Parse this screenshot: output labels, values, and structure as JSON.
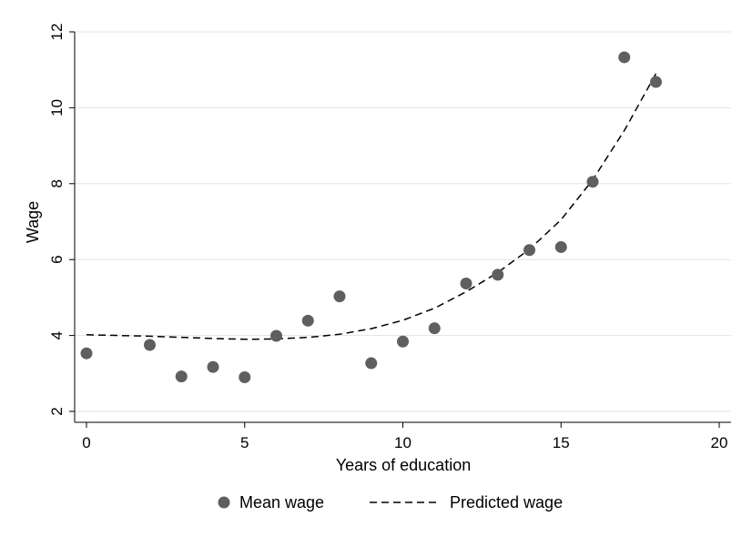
{
  "chart_data": {
    "type": "scatter",
    "xlabel": "Years of education",
    "ylabel": "Wage",
    "xlim": [
      0,
      20
    ],
    "ylim": [
      2,
      12
    ],
    "xticks": [
      "0",
      "5",
      "10",
      "15",
      "20"
    ],
    "yticks": [
      "2",
      "4",
      "6",
      "8",
      "10",
      "12"
    ],
    "grid": "horizontal",
    "legend_position": "bottom",
    "series": [
      {
        "name": "Mean wage",
        "type": "scatter",
        "color": "#5f5f5f",
        "points": [
          {
            "x": 0,
            "y": 3.53
          },
          {
            "x": 2,
            "y": 3.75
          },
          {
            "x": 3,
            "y": 2.92
          },
          {
            "x": 4,
            "y": 3.17
          },
          {
            "x": 5,
            "y": 2.9
          },
          {
            "x": 6,
            "y": 3.99
          },
          {
            "x": 7,
            "y": 4.39
          },
          {
            "x": 8,
            "y": 5.03
          },
          {
            "x": 9,
            "y": 3.27
          },
          {
            "x": 10,
            "y": 3.84
          },
          {
            "x": 11,
            "y": 4.19
          },
          {
            "x": 12,
            "y": 5.37
          },
          {
            "x": 13,
            "y": 5.6
          },
          {
            "x": 14,
            "y": 6.25
          },
          {
            "x": 15,
            "y": 6.33
          },
          {
            "x": 16,
            "y": 8.05
          },
          {
            "x": 17,
            "y": 11.33
          },
          {
            "x": 18,
            "y": 10.68
          }
        ]
      },
      {
        "name": "Predicted wage",
        "type": "line",
        "style": "dashed",
        "color": "#000000",
        "points": [
          {
            "x": 0,
            "y": 4.02
          },
          {
            "x": 2,
            "y": 3.98
          },
          {
            "x": 4,
            "y": 3.92
          },
          {
            "x": 5,
            "y": 3.9
          },
          {
            "x": 6,
            "y": 3.91
          },
          {
            "x": 7,
            "y": 3.95
          },
          {
            "x": 8,
            "y": 4.03
          },
          {
            "x": 9,
            "y": 4.18
          },
          {
            "x": 10,
            "y": 4.4
          },
          {
            "x": 11,
            "y": 4.72
          },
          {
            "x": 12,
            "y": 5.15
          },
          {
            "x": 13,
            "y": 5.66
          },
          {
            "x": 14,
            "y": 6.27
          },
          {
            "x": 15,
            "y": 7.05
          },
          {
            "x": 16,
            "y": 8.1
          },
          {
            "x": 17,
            "y": 9.4
          },
          {
            "x": 18,
            "y": 10.9
          }
        ]
      }
    ]
  }
}
